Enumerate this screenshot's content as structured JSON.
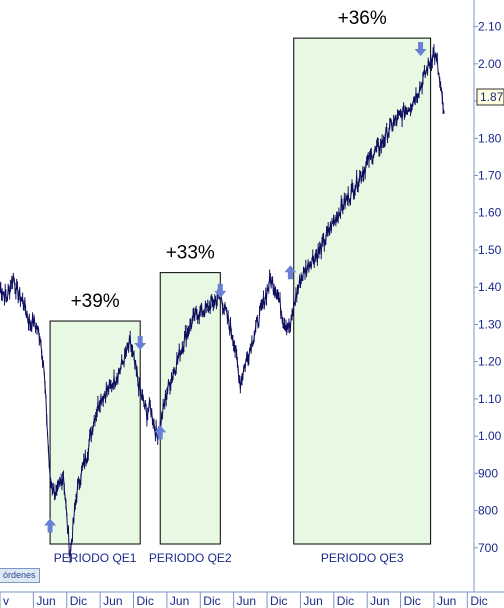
{
  "chart_data": {
    "type": "line",
    "title": "",
    "xlabel": "",
    "ylabel": "",
    "ylim": [
      600,
      2150
    ],
    "y_ticks": [
      "700",
      "800",
      "900",
      "1.00",
      "1.10",
      "1.20",
      "1.30",
      "1.40",
      "1.50",
      "1.60",
      "1.70",
      "1.80",
      "1.90",
      "2.00",
      "2.10"
    ],
    "y_tick_values": [
      700,
      800,
      900,
      1000,
      1100,
      1200,
      1300,
      1400,
      1500,
      1600,
      1700,
      1800,
      1900,
      2000,
      2100
    ],
    "last_price_label": "1.87",
    "last_price_value": 1870,
    "x_ticks": [
      "v",
      "Jun",
      "Dic",
      "Jun",
      "Dic",
      "Jun",
      "Dic",
      "Jun",
      "Dic",
      "Jun",
      "Dic",
      "Jun",
      "Dic",
      "Jun",
      "Dic"
    ],
    "x_tick_index": [
      0,
      1,
      2,
      3,
      4,
      5,
      6,
      7,
      8,
      9,
      10,
      11,
      12,
      13,
      14
    ],
    "x_range": [
      0,
      14.2
    ],
    "series": [
      {
        "values_x": [
          0,
          0.2,
          0.4,
          0.5,
          0.7,
          0.9,
          1.0,
          1.2,
          1.3,
          1.4,
          1.5,
          1.7,
          1.9,
          2.0,
          2.1,
          2.3,
          2.4,
          2.6,
          2.8,
          3.0,
          3.3,
          3.6,
          3.9,
          4.2,
          4.4,
          4.5,
          4.7,
          4.8,
          5.0,
          5.3,
          5.6,
          5.9,
          6.2,
          6.6,
          7.0,
          7.2,
          7.3,
          7.5,
          7.8,
          8.1,
          8.3,
          8.5,
          8.7,
          8.8,
          9.0,
          9.3,
          9.6,
          9.9,
          10.2,
          10.5,
          10.8,
          11.1,
          11.4,
          11.7,
          12.0,
          12.3,
          12.6,
          12.9,
          13.0,
          13.1,
          13.2,
          13.3
        ],
        "values_y": [
          1400,
          1370,
          1430,
          1390,
          1360,
          1300,
          1310,
          1270,
          1200,
          1050,
          880,
          840,
          900,
          780,
          680,
          850,
          890,
          950,
          1040,
          1100,
          1130,
          1180,
          1250,
          1120,
          1060,
          1080,
          1000,
          1030,
          1120,
          1200,
          1280,
          1330,
          1340,
          1380,
          1260,
          1140,
          1180,
          1240,
          1330,
          1420,
          1390,
          1310,
          1290,
          1350,
          1420,
          1470,
          1500,
          1560,
          1610,
          1650,
          1700,
          1750,
          1780,
          1830,
          1860,
          1890,
          1940,
          2010,
          2030,
          2000,
          1930,
          1870
        ]
      }
    ],
    "periods": [
      {
        "label": "PERIODO QE1",
        "pct": "+39%",
        "x_start": 1.5,
        "x_end": 4.2,
        "up_arrow_x": 1.5,
        "up_arrow_y": 760,
        "down_arrow_x": 4.2,
        "down_arrow_y": 1250
      },
      {
        "label": "PERIODO QE2",
        "pct": "+33%",
        "x_start": 4.8,
        "x_end": 6.6,
        "up_arrow_x": 4.8,
        "up_arrow_y": 1010,
        "down_arrow_x": 6.6,
        "down_arrow_y": 1390
      },
      {
        "label": "PERIODO QE3",
        "pct": "+36%",
        "x_start": 8.8,
        "x_end": 12.9,
        "up_arrow_x": 8.7,
        "up_arrow_y": 1440,
        "down_arrow_x": 12.6,
        "down_arrow_y": 2040
      }
    ],
    "colors": {
      "line": "#0d0d5e",
      "box_fill": "#e8f9e3",
      "arrow": "#6a7fd6",
      "axis_text": "#1a2a8a",
      "divider": "#7b94c9"
    }
  },
  "ui": {
    "tab_label": "órdenes"
  }
}
